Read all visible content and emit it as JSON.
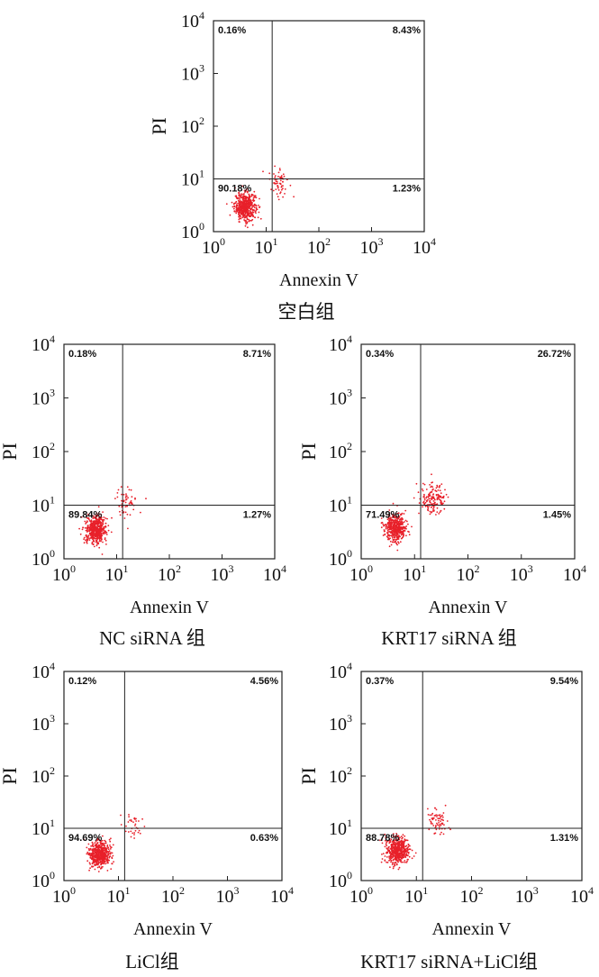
{
  "chart_data": [
    {
      "type": "scatter",
      "group": "空白组",
      "xlabel": "Annexin V",
      "ylabel": "PI",
      "x_scale": "log",
      "y_scale": "log",
      "xlim": [
        1,
        10000
      ],
      "ylim": [
        1,
        10000
      ],
      "x_ticks": [
        "10",
        "10",
        "10",
        "10",
        "10"
      ],
      "x_tick_exponents": [
        "0",
        "1",
        "2",
        "3",
        "4"
      ],
      "y_ticks": [
        "10",
        "10",
        "10",
        "10",
        "10"
      ],
      "y_tick_exponents": [
        "0",
        "1",
        "2",
        "3",
        "4"
      ],
      "gate": {
        "x": 13,
        "y": 10
      },
      "quadrants": {
        "upper_left": "0.16%",
        "upper_right": "8.43%",
        "lower_left": "90.18%",
        "lower_right": "1.23%"
      },
      "clusters": [
        {
          "name": "main",
          "center": [
            4,
            3
          ],
          "spread": [
            0.1,
            0.13
          ],
          "points": 520
        },
        {
          "name": "apoptotic",
          "center": [
            17,
            9
          ],
          "spread": [
            0.1,
            0.14
          ],
          "points": 60
        }
      ]
    },
    {
      "type": "scatter",
      "group": "NC siRNA 组",
      "xlabel": "Annexin V",
      "ylabel": "PI",
      "x_scale": "log",
      "y_scale": "log",
      "xlim": [
        1,
        10000
      ],
      "ylim": [
        1,
        10000
      ],
      "x_ticks": [
        "10",
        "10",
        "10",
        "10",
        "10"
      ],
      "x_tick_exponents": [
        "0",
        "1",
        "2",
        "3",
        "4"
      ],
      "y_ticks": [
        "10",
        "10",
        "10",
        "10",
        "10"
      ],
      "y_tick_exponents": [
        "0",
        "1",
        "2",
        "3",
        "4"
      ],
      "gate": {
        "x": 13,
        "y": 10
      },
      "quadrants": {
        "upper_left": "0.18%",
        "upper_right": "8.71%",
        "lower_left": "89.84%",
        "lower_right": "1.27%"
      },
      "clusters": [
        {
          "name": "main",
          "center": [
            4,
            3.5
          ],
          "spread": [
            0.1,
            0.13
          ],
          "points": 520
        },
        {
          "name": "apoptotic",
          "center": [
            15,
            11
          ],
          "spread": [
            0.1,
            0.13
          ],
          "points": 60
        }
      ]
    },
    {
      "type": "scatter",
      "group": "KRT17 siRNA 组",
      "xlabel": "Annexin V",
      "ylabel": "PI",
      "x_scale": "log",
      "y_scale": "log",
      "xlim": [
        1,
        10000
      ],
      "ylim": [
        1,
        10000
      ],
      "x_ticks": [
        "10",
        "10",
        "10",
        "10",
        "10"
      ],
      "x_tick_exponents": [
        "0",
        "1",
        "2",
        "3",
        "4"
      ],
      "y_ticks": [
        "10",
        "10",
        "10",
        "10",
        "10"
      ],
      "y_tick_exponents": [
        "0",
        "1",
        "2",
        "3",
        "4"
      ],
      "gate": {
        "x": 13,
        "y": 10
      },
      "quadrants": {
        "upper_left": "0.34%",
        "upper_right": "26.72%",
        "lower_left": "71.49%",
        "lower_right": "1.45%"
      },
      "clusters": [
        {
          "name": "main",
          "center": [
            4.5,
            3.8
          ],
          "spread": [
            0.1,
            0.13
          ],
          "points": 440
        },
        {
          "name": "apoptotic",
          "center": [
            22,
            13
          ],
          "spread": [
            0.12,
            0.14
          ],
          "points": 160
        }
      ]
    },
    {
      "type": "scatter",
      "group": "LiCl组",
      "xlabel": "Annexin V",
      "ylabel": "PI",
      "x_scale": "log",
      "y_scale": "log",
      "xlim": [
        1,
        10000
      ],
      "ylim": [
        1,
        10000
      ],
      "x_ticks": [
        "10",
        "10",
        "10",
        "10",
        "10"
      ],
      "x_tick_exponents": [
        "0",
        "1",
        "2",
        "3",
        "4"
      ],
      "y_ticks": [
        "10",
        "10",
        "10",
        "10",
        "10"
      ],
      "y_tick_exponents": [
        "0",
        "1",
        "2",
        "3",
        "4"
      ],
      "gate": {
        "x": 13,
        "y": 10
      },
      "quadrants": {
        "upper_left": "0.12%",
        "upper_right": "4.56%",
        "lower_left": "94.69%",
        "lower_right": "0.63%"
      },
      "clusters": [
        {
          "name": "main",
          "center": [
            4.5,
            3.2
          ],
          "spread": [
            0.1,
            0.13
          ],
          "points": 540
        },
        {
          "name": "apoptotic",
          "center": [
            19,
            12
          ],
          "spread": [
            0.1,
            0.12
          ],
          "points": 35
        }
      ]
    },
    {
      "type": "scatter",
      "group": "KRT17 siRNA+LiCl组",
      "xlabel": "Annexin V",
      "ylabel": "PI",
      "x_scale": "log",
      "y_scale": "log",
      "xlim": [
        1,
        10000
      ],
      "ylim": [
        1,
        10000
      ],
      "x_ticks": [
        "10",
        "10",
        "10",
        "10",
        "10"
      ],
      "x_tick_exponents": [
        "0",
        "1",
        "2",
        "3",
        "4"
      ],
      "y_ticks": [
        "10",
        "10",
        "10",
        "10",
        "10"
      ],
      "y_tick_exponents": [
        "0",
        "1",
        "2",
        "3",
        "4"
      ],
      "gate": {
        "x": 13,
        "y": 10
      },
      "quadrants": {
        "upper_left": "0.37%",
        "upper_right": "9.54%",
        "lower_left": "88.78%",
        "lower_right": "1.31%"
      },
      "clusters": [
        {
          "name": "main",
          "center": [
            4.5,
            3.8
          ],
          "spread": [
            0.1,
            0.13
          ],
          "points": 500
        },
        {
          "name": "apoptotic",
          "center": [
            24,
            14
          ],
          "spread": [
            0.1,
            0.13
          ],
          "points": 70
        }
      ]
    }
  ],
  "colors": {
    "dots": "#e8202a",
    "axes": "#222222"
  }
}
